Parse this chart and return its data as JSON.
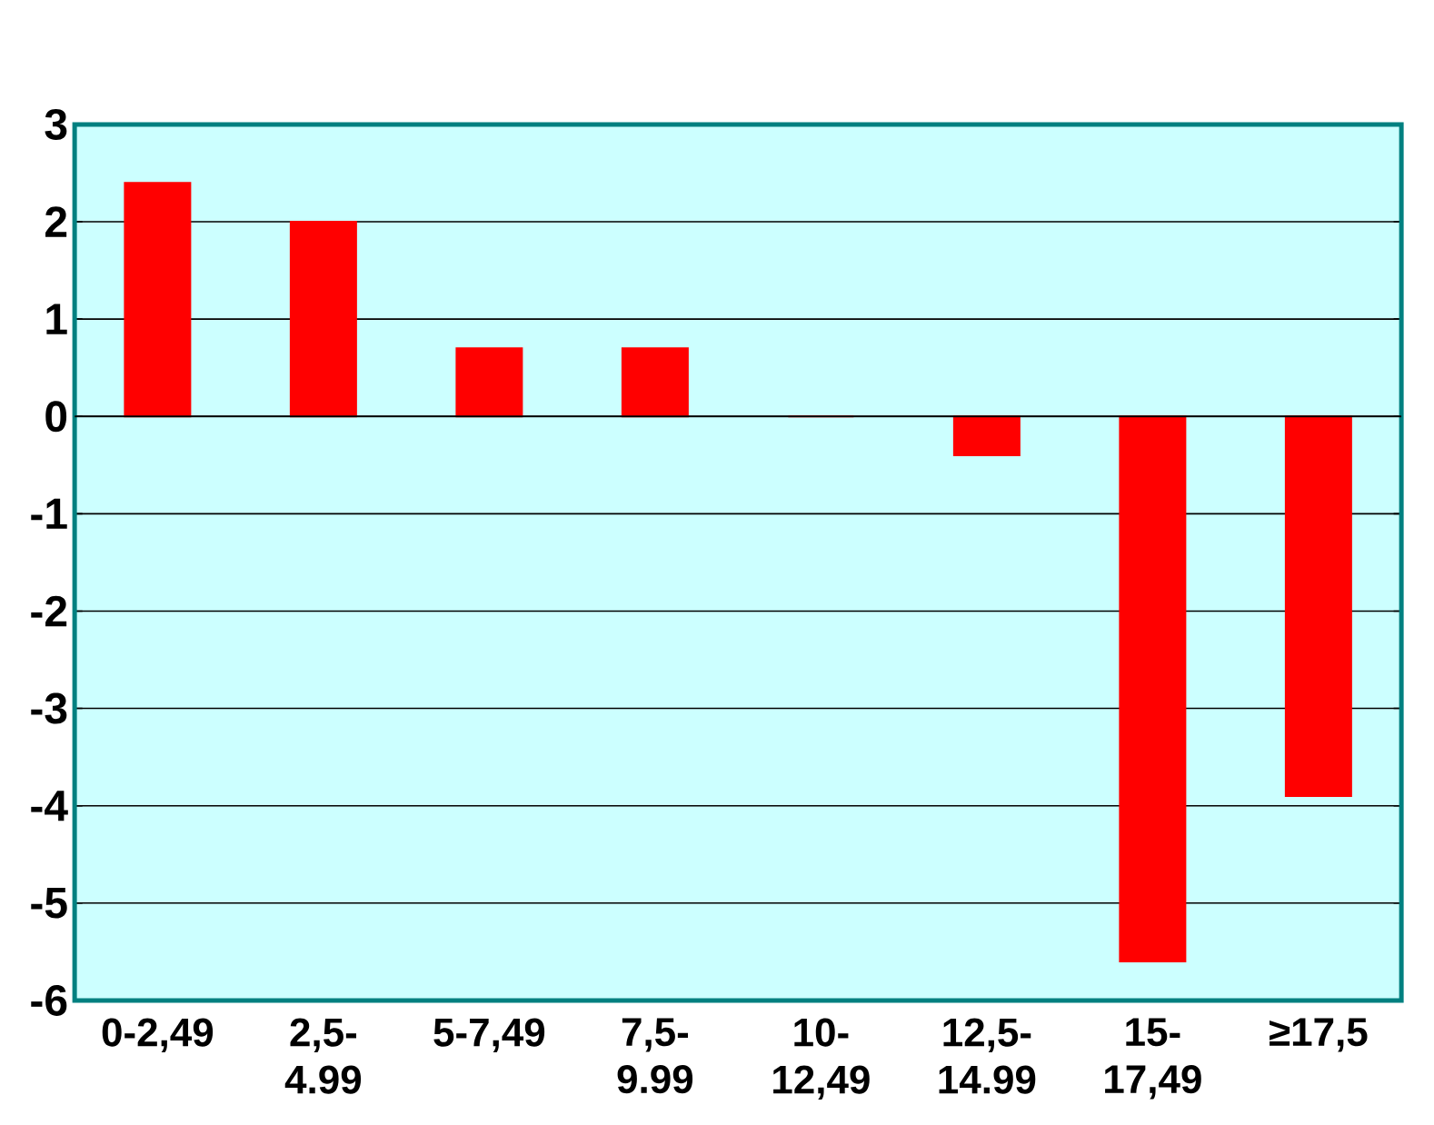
{
  "chart_data": {
    "type": "bar",
    "categories": [
      "0-2,49",
      "2,5-4.99",
      "5-7,49",
      "7,5-9.99",
      "10-12,49",
      "12,5-14.99",
      "15-17,49",
      "≥17,5"
    ],
    "values": [
      2.4,
      2.0,
      0.7,
      0.7,
      0.0,
      -0.4,
      -5.6,
      -3.9
    ],
    "color": "#ff0000",
    "ylim": [
      -6,
      3
    ],
    "yticks": [
      -6,
      -5,
      -4,
      -3,
      -2,
      -1,
      0,
      1,
      2,
      3
    ],
    "grid": "y"
  }
}
